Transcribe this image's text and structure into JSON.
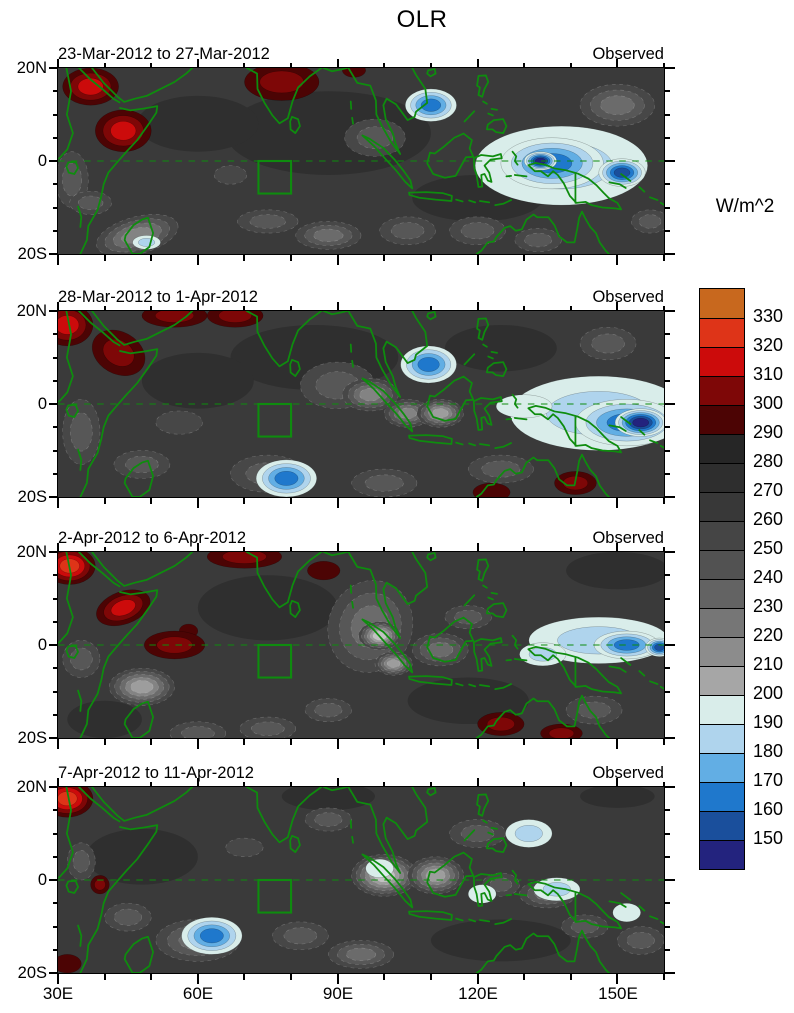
{
  "chart_data": {
    "type": "heatmap",
    "title": "OLR",
    "units": "W/m^2",
    "x_axis": {
      "ticks": [
        "30E",
        "60E",
        "90E",
        "120E",
        "150E"
      ],
      "range_deg": [
        30,
        160
      ]
    },
    "y_axis": {
      "ticks": [
        "20N",
        "0",
        "20S"
      ],
      "range_deg": [
        -20,
        20
      ]
    },
    "colorbar": {
      "labels": [
        "330",
        "320",
        "310",
        "300",
        "290",
        "280",
        "270",
        "260",
        "250",
        "240",
        "230",
        "220",
        "210",
        "200",
        "190",
        "180",
        "170",
        "160",
        "150"
      ],
      "colors_top_to_bottom": [
        "#C8681E",
        "#DE3418",
        "#CC0B0B",
        "#7E0707",
        "#4C0404",
        "#262626",
        "#2E2E2E",
        "#383838",
        "#454545",
        "#525252",
        "#636363",
        "#767676",
        "#8C8C8C",
        "#A6A6A6",
        "#D9EDEA",
        "#AFD4ED",
        "#62AEE4",
        "#1F78CC",
        "#1A4F9C",
        "#23237E"
      ]
    },
    "map_overlay": {
      "coast_color": "#0E8C0E",
      "equator_dashed": true,
      "index_box_lon": [
        73,
        80
      ],
      "index_box_lat": [
        -7,
        0
      ]
    },
    "panels": [
      {
        "title": "23-Mar-2012 to 27-Mar-2012",
        "tag": "Observed",
        "features": [
          [
            "d",
            88,
            6,
            44,
            18,
            1
          ],
          [
            "d",
            60,
            8,
            26,
            12,
            1
          ],
          [
            "d",
            120,
            -8,
            28,
            10,
            1
          ],
          [
            "g",
            33,
            -4,
            7,
            12,
            2
          ],
          [
            "g",
            37,
            -9,
            9,
            5,
            2
          ],
          [
            "g",
            47,
            -16,
            18,
            8,
            4,
            -15
          ],
          [
            "g",
            75,
            -13,
            13,
            5,
            2
          ],
          [
            "g",
            88,
            -16,
            14,
            6,
            3
          ],
          [
            "g",
            98,
            5,
            13,
            8,
            2
          ],
          [
            "g",
            105,
            -15,
            12,
            6,
            2
          ],
          [
            "g",
            120,
            -15,
            12,
            6,
            2
          ],
          [
            "g",
            133,
            -17,
            10,
            5,
            2
          ],
          [
            "g",
            150,
            12,
            16,
            9,
            3
          ],
          [
            "g",
            157,
            -13,
            8,
            5,
            2
          ],
          [
            "g",
            67,
            -3,
            7,
            4,
            1
          ],
          [
            "r",
            37,
            16,
            12,
            8,
            3
          ],
          [
            "r",
            44,
            6.5,
            12,
            9,
            3
          ],
          [
            "r",
            78,
            17,
            16,
            8,
            2
          ],
          [
            "r",
            93.5,
            19.5,
            5,
            3,
            1
          ],
          [
            "b",
            49,
            -17.5,
            6,
            3,
            2
          ],
          [
            "b",
            138,
            -1,
            37,
            17,
            2
          ],
          [
            "b",
            136,
            -0.5,
            22,
            11,
            4
          ],
          [
            "b",
            133.5,
            0,
            7,
            4,
            6
          ],
          [
            "b",
            151,
            -2.5,
            10,
            6,
            5
          ],
          [
            "b",
            110,
            12,
            11,
            7,
            4
          ]
        ]
      },
      {
        "title": "28-Mar-2012 to 1-Apr-2012",
        "tag": "Observed",
        "features": [
          [
            "d",
            85,
            10,
            36,
            14,
            1
          ],
          [
            "d",
            60,
            5,
            24,
            12,
            1
          ],
          [
            "d",
            125,
            12,
            24,
            10,
            1
          ],
          [
            "g",
            35,
            -6,
            8,
            14,
            2
          ],
          [
            "g",
            48,
            -13,
            12,
            6,
            2
          ],
          [
            "g",
            56,
            -4,
            10,
            5,
            1
          ],
          [
            "g",
            90,
            4,
            16,
            10,
            2
          ],
          [
            "g",
            97,
            2,
            12,
            7,
            4
          ],
          [
            "g",
            105,
            -2,
            10,
            6,
            4
          ],
          [
            "g",
            112,
            -2,
            10,
            6,
            5
          ],
          [
            "g",
            125,
            -14,
            14,
            6,
            2
          ],
          [
            "g",
            100,
            -17,
            14,
            6,
            2
          ],
          [
            "g",
            148,
            13,
            12,
            7,
            2
          ],
          [
            "g",
            75,
            -15,
            16,
            8,
            2
          ],
          [
            "r",
            32,
            17,
            11,
            9,
            3
          ],
          [
            "r",
            43,
            11,
            12,
            9,
            2,
            30
          ],
          [
            "r",
            55,
            19,
            14,
            5,
            2
          ],
          [
            "r",
            68,
            19,
            12,
            5,
            2
          ],
          [
            "r",
            123,
            -19,
            8,
            4,
            1
          ],
          [
            "r",
            141,
            -17,
            9,
            5,
            2
          ],
          [
            "b",
            79,
            -16,
            13,
            8,
            4
          ],
          [
            "b",
            109.5,
            8.5,
            12,
            8,
            4
          ],
          [
            "b",
            146,
            -2,
            38,
            16,
            2
          ],
          [
            "b",
            152,
            -4,
            22,
            10,
            4
          ],
          [
            "b",
            155,
            -4,
            11,
            6,
            6
          ],
          [
            "b",
            130,
            -0.5,
            12,
            5,
            1
          ]
        ]
      },
      {
        "title": "2-Apr-2012 to 6-Apr-2012",
        "tag": "Observed",
        "features": [
          [
            "d",
            75,
            8,
            30,
            14,
            1
          ],
          [
            "d",
            118,
            -12,
            26,
            10,
            1
          ],
          [
            "d",
            150,
            16,
            22,
            8,
            1
          ],
          [
            "d",
            40,
            -16,
            16,
            8,
            1
          ],
          [
            "g",
            97,
            4,
            18,
            20,
            3,
            20
          ],
          [
            "g",
            99,
            2,
            9,
            6,
            6
          ],
          [
            "g",
            102,
            -4,
            8,
            5,
            5
          ],
          [
            "g",
            112,
            -1,
            12,
            7,
            3
          ],
          [
            "g",
            48,
            -9,
            14,
            8,
            5
          ],
          [
            "g",
            35,
            -3,
            8,
            8,
            2
          ],
          [
            "g",
            75,
            -18,
            12,
            5,
            2
          ],
          [
            "g",
            88,
            -14,
            10,
            5,
            2
          ],
          [
            "g",
            145,
            -14,
            12,
            6,
            2
          ],
          [
            "g",
            118,
            6,
            10,
            5,
            2
          ],
          [
            "g",
            60,
            -19,
            12,
            5,
            2
          ],
          [
            "r",
            32.5,
            17,
            11,
            8,
            4
          ],
          [
            "r",
            44,
            8,
            12,
            7,
            3,
            -20
          ],
          [
            "r",
            70,
            19,
            16,
            5,
            2
          ],
          [
            "r",
            87,
            16,
            7,
            4,
            1
          ],
          [
            "r",
            58,
            3,
            4,
            3,
            1
          ],
          [
            "r",
            55,
            0,
            13,
            6,
            2
          ],
          [
            "r",
            125,
            -17,
            10,
            5,
            2
          ],
          [
            "r",
            138,
            -19,
            9,
            4,
            2
          ],
          [
            "b",
            146,
            1,
            30,
            10,
            2
          ],
          [
            "b",
            152,
            0,
            14,
            6,
            4
          ],
          [
            "b",
            159,
            -0.5,
            6,
            4,
            5
          ],
          [
            "b",
            134,
            -2,
            10,
            5,
            2
          ]
        ]
      },
      {
        "title": "7-Apr-2012 to 11-Apr-2012",
        "tag": "Observed",
        "features": [
          [
            "d",
            48,
            5,
            24,
            12,
            1
          ],
          [
            "d",
            125,
            -13,
            30,
            9,
            1
          ],
          [
            "d",
            88,
            18,
            20,
            6,
            1
          ],
          [
            "d",
            150,
            18,
            16,
            5,
            1
          ],
          [
            "g",
            100,
            1,
            14,
            9,
            6
          ],
          [
            "g",
            111,
            1,
            12,
            8,
            5
          ],
          [
            "g",
            125,
            -1,
            8,
            5,
            2
          ],
          [
            "g",
            135,
            -3,
            12,
            6,
            3
          ],
          [
            "g",
            60,
            -13,
            18,
            9,
            3
          ],
          [
            "g",
            45,
            -8,
            10,
            6,
            2
          ],
          [
            "g",
            82,
            -12,
            12,
            6,
            2
          ],
          [
            "g",
            95,
            -16,
            14,
            6,
            3
          ],
          [
            "g",
            120,
            10,
            12,
            6,
            2
          ],
          [
            "g",
            88,
            13,
            10,
            5,
            2
          ],
          [
            "g",
            70,
            7,
            8,
            4,
            1
          ],
          [
            "g",
            155,
            -13,
            10,
            6,
            2
          ],
          [
            "g",
            35,
            4,
            6,
            8,
            2
          ],
          [
            "g",
            143,
            -10,
            10,
            5,
            2
          ],
          [
            "r",
            32,
            17.5,
            11,
            8,
            4
          ],
          [
            "r",
            39,
            -1,
            4,
            4,
            2
          ],
          [
            "r",
            32,
            -18,
            6,
            4,
            1
          ],
          [
            "b",
            63,
            -12,
            13,
            8,
            4
          ],
          [
            "b",
            131,
            10,
            10,
            6,
            2
          ],
          [
            "b",
            99,
            2.5,
            6,
            4,
            1
          ],
          [
            "b",
            137,
            -2,
            10,
            5,
            2
          ],
          [
            "b",
            152,
            -7,
            6,
            4,
            1
          ],
          [
            "b",
            121,
            -3,
            6,
            4,
            1
          ]
        ]
      }
    ]
  }
}
